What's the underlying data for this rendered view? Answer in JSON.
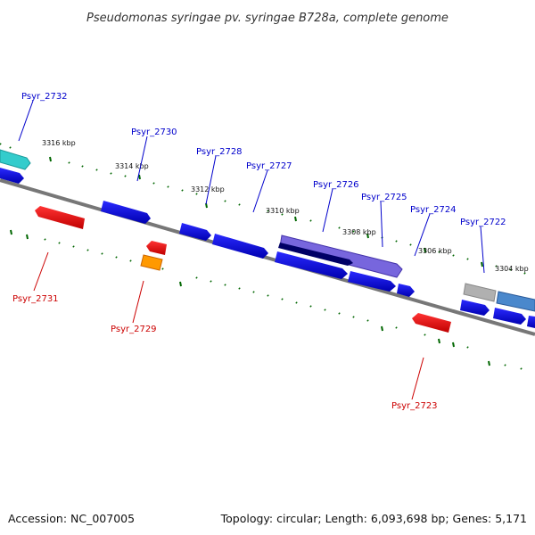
{
  "title": "Pseudomonas syringae pv. syringae B728a, complete genome",
  "footer": {
    "accession": "Accession: NC_007005",
    "summary": "Topology: circular; Length: 6,093,698 bp; Genes: 5,171"
  },
  "ticks": [
    "3316 kbp",
    "3314 kbp",
    "3312 kbp",
    "3310 kbp",
    "3308 kbp",
    "3306 kbp",
    "3304 kbp"
  ],
  "genes": {
    "forward": [
      {
        "name": "Psyr_2732",
        "color": "#33cccc"
      },
      {
        "name": "Psyr_2730",
        "color": "#0000ee"
      },
      {
        "name": "Psyr_2728",
        "color": "#0000ee"
      },
      {
        "name": "Psyr_2727",
        "color": "#0000ee"
      },
      {
        "name": "Psyr_2726",
        "color": "#6655cc"
      },
      {
        "name": "Psyr_2725",
        "color": "#0000ee"
      },
      {
        "name": "Psyr_2724",
        "color": "#0000ee"
      },
      {
        "name": "Psyr_2722",
        "color": "#aaaaaa"
      }
    ],
    "reverse": [
      {
        "name": "Psyr_2731",
        "color": "#ee0000"
      },
      {
        "name": "Psyr_2729",
        "color": "#ee8800"
      },
      {
        "name": "Psyr_2723",
        "color": "#ee0000"
      }
    ]
  },
  "colors": {
    "forward_label": "#0000cc",
    "reverse_label": "#cc0000",
    "backbone": "#777777",
    "tick": "#006600"
  }
}
